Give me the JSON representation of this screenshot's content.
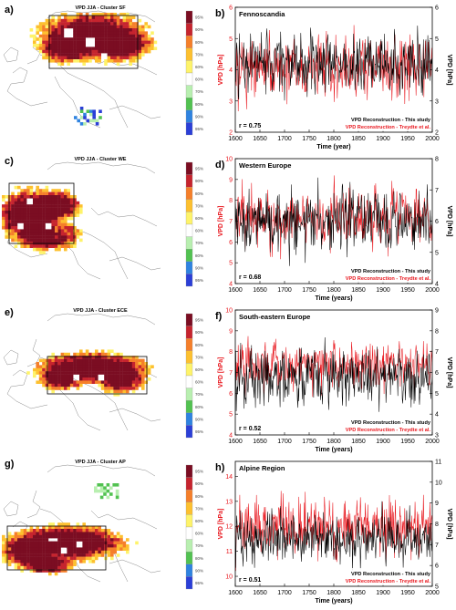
{
  "colorbar": {
    "labels": [
      "95%",
      "90%",
      "80%",
      "70%",
      "60%",
      "60%",
      "70%",
      "80%",
      "90%",
      "95%"
    ],
    "colors": [
      "#7b0d22",
      "#c6242e",
      "#f57f2a",
      "#fdc02f",
      "#fef36a",
      "#ffffff",
      "#b8efb0",
      "#52c251",
      "#2f83e0",
      "#2b3fd7"
    ]
  },
  "line_colors": {
    "study": "#000000",
    "treydte": "#e8161d"
  },
  "panels": [
    {
      "map": {
        "letter": "a)",
        "title": "VPD JJA - Cluster SF"
      },
      "chart": {
        "letter": "b)",
        "region": "Fennoscandia",
        "r_label": "r = 0.75",
        "xlabel": "Time (year)",
        "ylabel_left": "VPD [hPa]",
        "ylabel_right": "VPD [hPa]",
        "legend_study": "VPD Reconstruction - This study",
        "legend_treydte": "VPD Reconstruction - Treydte et al.",
        "xticks": [
          "1600",
          "1650",
          "1700",
          "1750",
          "1800",
          "1850",
          "1900",
          "1950",
          "2000"
        ],
        "yticks_left": [
          "2",
          "3",
          "4",
          "5",
          "6"
        ],
        "yticks_right": [
          "2",
          "3",
          "4",
          "5",
          "6"
        ]
      }
    },
    {
      "map": {
        "letter": "c)",
        "title": "VPD JJA - Cluster WE"
      },
      "chart": {
        "letter": "d)",
        "region": "Western Europe",
        "r_label": "r = 0.68",
        "xlabel": "Time (years)",
        "ylabel_left": "VPD [hPa]",
        "ylabel_right": "VPD [hPa]",
        "legend_study": "VPD Reconstruction - This study",
        "legend_treydte": "VPD Reconstruction - Treydte et al.",
        "xticks": [
          "1600",
          "1650",
          "1700",
          "1750",
          "1800",
          "1850",
          "1900",
          "1950",
          "2000"
        ],
        "yticks_left": [
          "4",
          "5",
          "6",
          "7",
          "8",
          "9",
          "10"
        ],
        "yticks_right": [
          "4",
          "5",
          "6",
          "7",
          "8"
        ]
      }
    },
    {
      "map": {
        "letter": "e)",
        "title": "VPD JJA - Cluster ECE"
      },
      "chart": {
        "letter": "f)",
        "region": "South-eastern Europe",
        "r_label": "r = 0.52",
        "xlabel": "Time (years)",
        "ylabel_left": "VPD [hPa]",
        "ylabel_right": "VPD [hPa]",
        "legend_study": "VPD Reconstruction - This study",
        "legend_treydte": "VPD Reconstruction - Treydte et al.",
        "xticks": [
          "1600",
          "1650",
          "1700",
          "1750",
          "1800",
          "1850",
          "1900",
          "1950",
          "2000"
        ],
        "yticks_left": [
          "4",
          "5",
          "6",
          "7",
          "8",
          "9",
          "10"
        ],
        "yticks_right": [
          "3",
          "4",
          "5",
          "6",
          "7",
          "8",
          "9"
        ]
      }
    },
    {
      "map": {
        "letter": "g)",
        "title": "VPD JJA - Cluster AP"
      },
      "chart": {
        "letter": "h)",
        "region": "Alpine Region",
        "r_label": "r = 0.51",
        "xlabel": "Time (years)",
        "ylabel_left": "VPD [hPa]",
        "ylabel_right": "VPD [hPa]",
        "legend_study": "VPD Reconstruction - This study",
        "legend_treydte": "VPD Reconstruction - Treydte et al.",
        "xticks": [
          "1600",
          "1650",
          "1700",
          "1750",
          "1800",
          "1850",
          "1900",
          "1950",
          "2000"
        ],
        "yticks_left": [
          "10",
          "11",
          "12",
          "13",
          "14"
        ],
        "yticks_right": [
          "5",
          "6",
          "7",
          "8",
          "9",
          "10",
          "11"
        ]
      }
    }
  ],
  "chart_data": [
    {
      "type": "line",
      "title": "Fennoscandia",
      "xlabel": "Time (year)",
      "ylabel": "VPD [hPa]",
      "xlim": [
        1600,
        2000
      ],
      "ylim": [
        2,
        6
      ],
      "y2lim": [
        2,
        6
      ],
      "series": [
        {
          "name": "VPD Reconstruction - This study",
          "mean": 4.2,
          "amplitude": 0.7
        },
        {
          "name": "VPD Reconstruction - Treydte et al.",
          "mean": 4.1,
          "amplitude": 0.7
        }
      ],
      "correlation": 0.75
    },
    {
      "type": "line",
      "title": "Western Europe",
      "xlabel": "Time (years)",
      "ylabel": "VPD [hPa]",
      "xlim": [
        1600,
        2000
      ],
      "ylim": [
        4,
        10
      ],
      "y2lim": [
        4,
        8
      ],
      "series": [
        {
          "name": "VPD Reconstruction - This study",
          "mean": 6.0,
          "amplitude": 0.7
        },
        {
          "name": "VPD Reconstruction - Treydte et al.",
          "mean": 7.2,
          "amplitude": 1.0
        }
      ],
      "correlation": 0.68
    },
    {
      "type": "line",
      "title": "South-eastern Europe",
      "xlabel": "Time (years)",
      "ylabel": "VPD [hPa]",
      "xlim": [
        1600,
        2000
      ],
      "ylim": [
        4,
        10
      ],
      "y2lim": [
        3,
        9
      ],
      "series": [
        {
          "name": "VPD Reconstruction - This study",
          "mean": 5.8,
          "amplitude": 1.0
        },
        {
          "name": "VPD Reconstruction - Treydte et al.",
          "mean": 7.4,
          "amplitude": 0.8
        }
      ],
      "correlation": 0.52
    },
    {
      "type": "line",
      "title": "Alpine Region",
      "xlabel": "Time (years)",
      "ylabel": "VPD [hPa]",
      "xlim": [
        1600,
        2000
      ],
      "ylim": [
        9.6,
        14.6
      ],
      "y2lim": [
        5,
        11
      ],
      "series": [
        {
          "name": "VPD Reconstruction - This study",
          "mean": 7.3,
          "amplitude": 0.9
        },
        {
          "name": "VPD Reconstruction - Treydte et al.",
          "mean": 12.0,
          "amplitude": 0.8
        }
      ],
      "correlation": 0.51
    }
  ]
}
